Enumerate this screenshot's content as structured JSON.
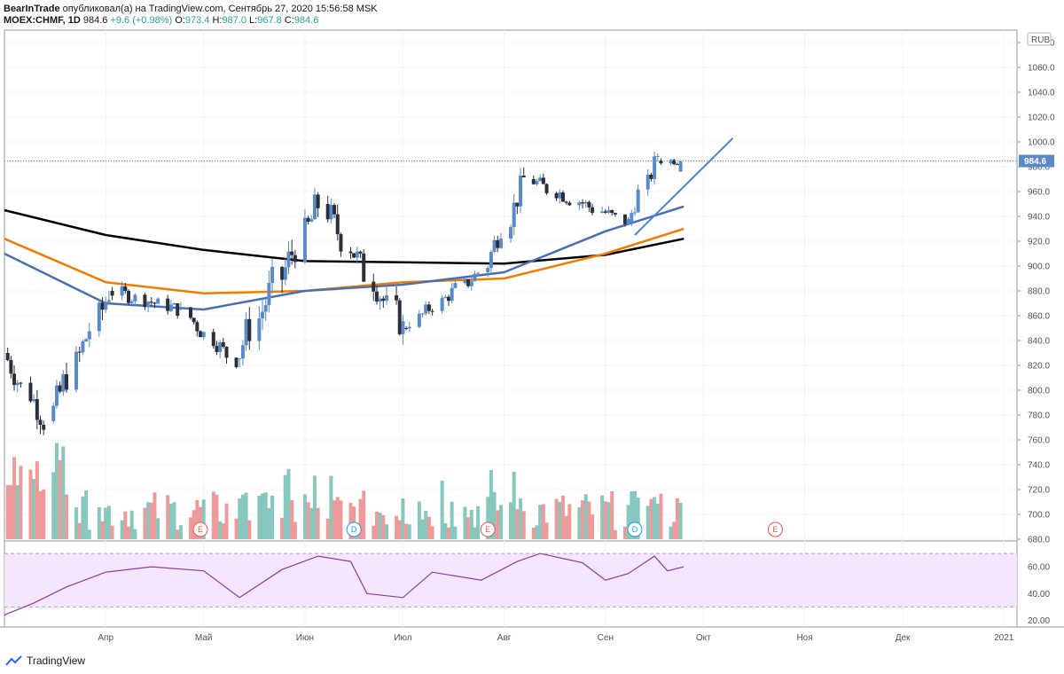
{
  "header": {
    "author": "BearInTrade",
    "published_text": "опубликовал(а) на TradingView.com, Сентябрь 27, 2020 15:56:58 MSK",
    "symbol": "MOEX:CHMF, 1D",
    "last": "984.6",
    "change": "+9.6 (+0.98%)",
    "o_label": "O:",
    "o_value": "973.4",
    "h_label": "H:",
    "h_value": "987.0",
    "l_label": "L:",
    "l_value": "967.8",
    "c_label": "C:",
    "c_value": "984.6"
  },
  "price_scale": {
    "currency": "RUB",
    "ticks": [
      "1080.0",
      "1060.0",
      "1040.0",
      "1020.0",
      "1000.0",
      "980.0",
      "960.0",
      "940.0",
      "920.0",
      "900.0",
      "880.0",
      "860.0",
      "840.0",
      "820.0",
      "800.0",
      "780.0",
      "760.0",
      "740.0",
      "720.0",
      "700.0",
      "680.0"
    ],
    "current_label": "984.6"
  },
  "rsi_scale": {
    "ticks": [
      "60.00",
      "40.00",
      "20.00"
    ]
  },
  "x_axis": {
    "labels": [
      "Апр",
      "Май",
      "Июн",
      "Июл",
      "Авг",
      "Сен",
      "Окт",
      "Ноя",
      "Дек",
      "2021"
    ]
  },
  "events": [
    "E",
    "D",
    "E",
    "D",
    "E"
  ],
  "footer": {
    "brand": "TradingView"
  },
  "colors": {
    "up": "#5b8ac9",
    "down": "#2b2f3a",
    "vol_up": "#86c8bd",
    "vol_down": "#ef9a9a",
    "ma200": "#000000",
    "ma100": "#f57c00",
    "ma50": "#4a6fb5",
    "trend": "#4a86d4",
    "rsi": "#8e3aa8",
    "rsi_band": "#f3e5fb"
  },
  "chart_data": {
    "type": "candlestick",
    "symbol": "MOEX:CHMF",
    "interval": "1D",
    "x_range": [
      "2020-03-01",
      "2021-01-05"
    ],
    "y_range": [
      680,
      1090
    ],
    "last_close": 984.6,
    "ohlc_segments": [
      {
        "from": "2020-03-02",
        "to": "2020-03-16",
        "open": 830,
        "close": 775,
        "low": 760,
        "high": 860
      },
      {
        "from": "2020-03-16",
        "to": "2020-04-03",
        "open": 775,
        "close": 880,
        "low": 765,
        "high": 895
      },
      {
        "from": "2020-04-03",
        "to": "2020-04-24",
        "open": 880,
        "close": 865,
        "low": 850,
        "high": 905
      },
      {
        "from": "2020-04-24",
        "to": "2020-05-12",
        "open": 865,
        "close": 825,
        "low": 815,
        "high": 885
      },
      {
        "from": "2020-05-12",
        "to": "2020-06-08",
        "open": 825,
        "close": 950,
        "low": 820,
        "high": 960
      },
      {
        "from": "2020-06-08",
        "to": "2020-07-02",
        "open": 950,
        "close": 850,
        "low": 840,
        "high": 955
      },
      {
        "from": "2020-07-02",
        "to": "2020-07-27",
        "open": 850,
        "close": 895,
        "low": 848,
        "high": 905
      },
      {
        "from": "2020-07-27",
        "to": "2020-08-10",
        "open": 895,
        "close": 970,
        "low": 885,
        "high": 980
      },
      {
        "from": "2020-08-10",
        "to": "2020-09-09",
        "open": 970,
        "close": 935,
        "low": 920,
        "high": 980
      },
      {
        "from": "2020-09-09",
        "to": "2020-09-18",
        "open": 935,
        "close": 990,
        "low": 930,
        "high": 1000
      },
      {
        "from": "2020-09-18",
        "to": "2020-09-25",
        "open": 985,
        "close": 984.6,
        "low": 965,
        "high": 995
      }
    ],
    "moving_averages": [
      {
        "name": "MA200",
        "points": [
          [
            "2020-03-01",
            945
          ],
          [
            "2020-04-01",
            925
          ],
          [
            "2020-05-01",
            913
          ],
          [
            "2020-06-01",
            904
          ],
          [
            "2020-07-01",
            903
          ],
          [
            "2020-08-01",
            902
          ],
          [
            "2020-09-01",
            909
          ],
          [
            "2020-09-25",
            922
          ]
        ]
      },
      {
        "name": "MA100",
        "points": [
          [
            "2020-03-01",
            922
          ],
          [
            "2020-04-01",
            887
          ],
          [
            "2020-05-01",
            878
          ],
          [
            "2020-06-01",
            880
          ],
          [
            "2020-07-01",
            887
          ],
          [
            "2020-08-01",
            890
          ],
          [
            "2020-09-01",
            910
          ],
          [
            "2020-09-25",
            930
          ]
        ]
      },
      {
        "name": "MA50",
        "points": [
          [
            "2020-03-01",
            910
          ],
          [
            "2020-04-01",
            870
          ],
          [
            "2020-05-01",
            865
          ],
          [
            "2020-06-01",
            880
          ],
          [
            "2020-07-01",
            885
          ],
          [
            "2020-08-01",
            895
          ],
          [
            "2020-09-01",
            928
          ],
          [
            "2020-09-25",
            948
          ]
        ]
      }
    ],
    "trendline": [
      [
        "2020-09-10",
        925
      ],
      [
        "2020-10-10",
        1003
      ]
    ],
    "volume": {
      "min": 0,
      "max": "relative"
    },
    "rsi": {
      "levels": [
        70,
        30
      ],
      "y_range": [
        15,
        78
      ],
      "points": [
        [
          "2020-03-01",
          24
        ],
        [
          "2020-03-10",
          33
        ],
        [
          "2020-03-20",
          45
        ],
        [
          "2020-04-01",
          56
        ],
        [
          "2020-04-15",
          60
        ],
        [
          "2020-05-01",
          57
        ],
        [
          "2020-05-12",
          37
        ],
        [
          "2020-05-25",
          58
        ],
        [
          "2020-06-05",
          68
        ],
        [
          "2020-06-15",
          64
        ],
        [
          "2020-06-20",
          40
        ],
        [
          "2020-07-01",
          37
        ],
        [
          "2020-07-10",
          56
        ],
        [
          "2020-07-25",
          50
        ],
        [
          "2020-08-05",
          64
        ],
        [
          "2020-08-12",
          70
        ],
        [
          "2020-08-25",
          63
        ],
        [
          "2020-09-01",
          50
        ],
        [
          "2020-09-08",
          55
        ],
        [
          "2020-09-16",
          68
        ],
        [
          "2020-09-20",
          57
        ],
        [
          "2020-09-25",
          60
        ]
      ]
    }
  }
}
